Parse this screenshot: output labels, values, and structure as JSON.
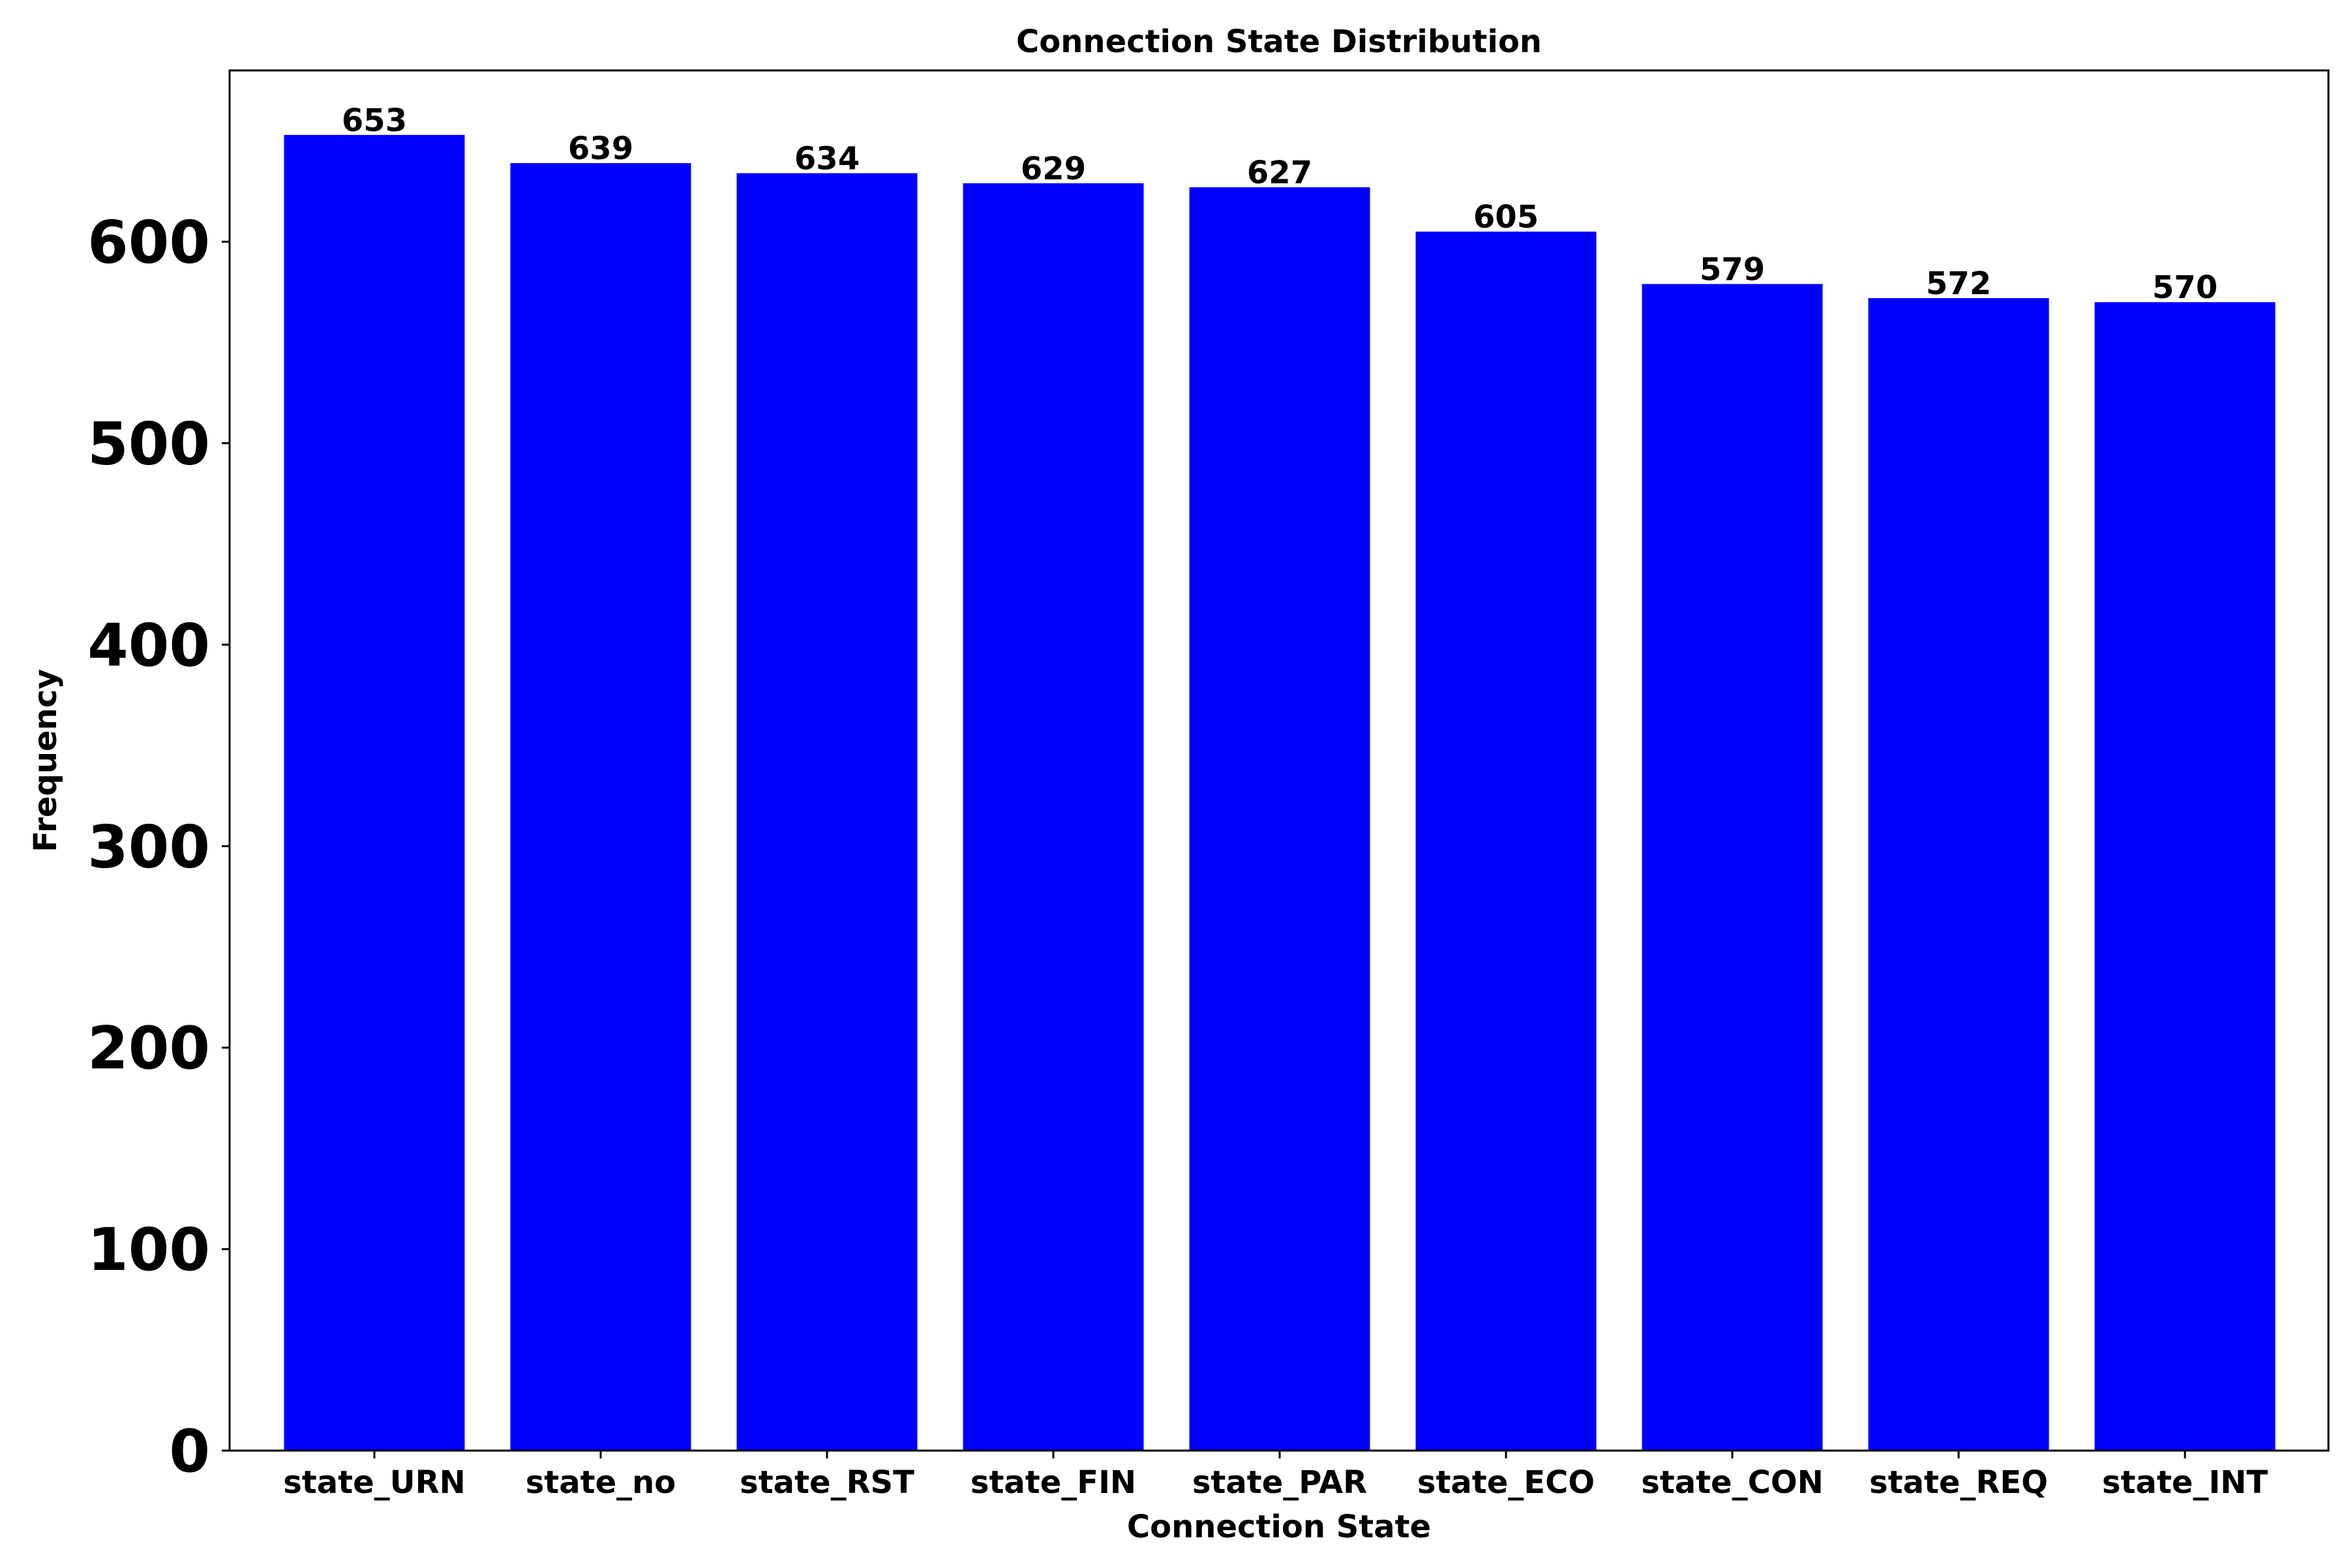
{
  "chart_data": {
    "type": "bar",
    "title": "Connection State Distribution",
    "xlabel": "Connection State",
    "ylabel": "Frequency",
    "categories": [
      "state_URN",
      "state_no",
      "state_RST",
      "state_FIN",
      "state_PAR",
      "state_ECO",
      "state_CON",
      "state_REQ",
      "state_INT"
    ],
    "values": [
      653,
      639,
      634,
      629,
      627,
      605,
      579,
      572,
      570
    ],
    "ylim": [
      0,
      685
    ],
    "yticks": [
      0,
      100,
      200,
      300,
      400,
      500,
      600
    ],
    "bar_color": "#0000ff",
    "data_labels": true,
    "grid": false,
    "legend": false
  }
}
